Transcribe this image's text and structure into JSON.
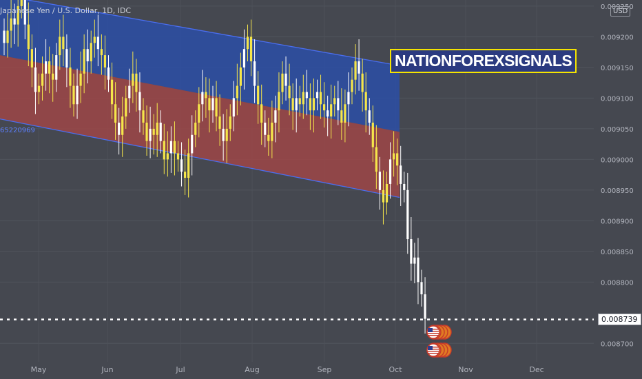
{
  "header": {
    "symbol_title": "Japanese Yen / U.S. Dollar, 1D, IDC",
    "currency": "USD"
  },
  "channel_value": "65220969",
  "watermark": "NATIONFOREXSIGNALS",
  "current_price": "0.008739",
  "colors": {
    "background": "#454850",
    "candle": "#f5e64a",
    "candle_white": "#ffffff",
    "channel_upper": "#2c4fa6",
    "channel_lower": "#a34646",
    "channel_line": "#4a6ef0",
    "price_line": "#ffffff"
  },
  "chart_data": {
    "type": "candlestick",
    "y_ticks": [
      "0.009250",
      "0.009200",
      "0.009150",
      "0.009100",
      "0.009050",
      "0.009000",
      "0.008950",
      "0.008900",
      "0.008850",
      "0.008800",
      "0.008700"
    ],
    "ylim": [
      0.00867,
      0.00926
    ],
    "x_ticks": [
      "May",
      "Jun",
      "Jul",
      "Aug",
      "Sep",
      "Oct",
      "Nov",
      "Dec"
    ],
    "current_price": 0.008739,
    "channel": {
      "upper_start": 0.009268,
      "upper_end": 0.009153,
      "middle_start": 0.00917,
      "middle_end": 0.009045,
      "lower_start": 0.009066,
      "lower_end": 0.008938
    },
    "closes": [
      0.00919,
      0.00921,
      0.00923,
      0.00922,
      0.00925,
      0.00926,
      0.00922,
      0.00918,
      0.00915,
      0.00911,
      0.00912,
      0.00914,
      0.00916,
      0.00914,
      0.00913,
      0.00917,
      0.0092,
      0.00918,
      0.00915,
      0.00912,
      0.00909,
      0.00912,
      0.00914,
      0.00918,
      0.00916,
      0.00919,
      0.0092,
      0.00918,
      0.00917,
      0.00915,
      0.00913,
      0.00909,
      0.00906,
      0.00904,
      0.00907,
      0.0091,
      0.00912,
      0.00914,
      0.00911,
      0.00908,
      0.00906,
      0.00903,
      0.00905,
      0.00904,
      0.00906,
      0.00903,
      0.009,
      0.00901,
      0.00903,
      0.00901,
      0.009,
      0.00898,
      0.00897,
      0.00901,
      0.00904,
      0.00906,
      0.00909,
      0.00911,
      0.0091,
      0.00908,
      0.0091,
      0.00907,
      0.00905,
      0.00903,
      0.00905,
      0.00907,
      0.0091,
      0.00912,
      0.00915,
      0.00918,
      0.0092,
      0.00916,
      0.00912,
      0.00909,
      0.00906,
      0.00904,
      0.00903,
      0.00906,
      0.00908,
      0.00911,
      0.00914,
      0.00912,
      0.0091,
      0.00908,
      0.0091,
      0.00909,
      0.00911,
      0.0091,
      0.00908,
      0.0091,
      0.00911,
      0.00909,
      0.00908,
      0.00907,
      0.00909,
      0.0091,
      0.00908,
      0.00906,
      0.00909,
      0.00911,
      0.00913,
      0.00916,
      0.00914,
      0.00911,
      0.00908,
      0.00906,
      0.00902,
      0.00898,
      0.00895,
      0.00893,
      0.00896,
      0.009,
      0.00901,
      0.00899,
      0.00896,
      0.00895,
      0.00887,
      0.00883,
      0.00884,
      0.0088,
      0.00878,
      0.00874
    ]
  }
}
